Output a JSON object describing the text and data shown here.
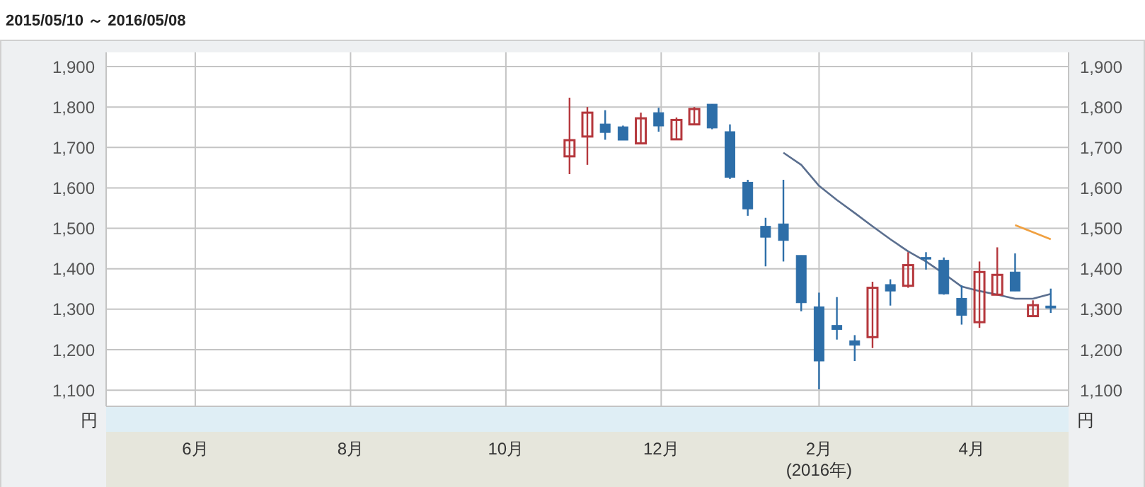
{
  "chart_data": {
    "type": "candlestick",
    "title": "2015/05/10 ～ 2016/05/08",
    "ylabel": "円",
    "y2label": "円",
    "x": [
      "2015-10-26",
      "2015-11-02",
      "2015-11-09",
      "2015-11-16",
      "2015-11-23",
      "2015-11-30",
      "2015-12-07",
      "2015-12-14",
      "2015-12-21",
      "2015-12-28",
      "2016-01-04",
      "2016-01-11",
      "2016-01-18",
      "2016-01-25",
      "2016-02-01",
      "2016-02-08",
      "2016-02-15",
      "2016-02-22",
      "2016-02-29",
      "2016-03-07",
      "2016-03-14",
      "2016-03-21",
      "2016-03-28",
      "2016-04-04",
      "2016-04-11",
      "2016-04-18",
      "2016-04-25",
      "2016-05-02"
    ],
    "ohlc": [
      [
        1678,
        1823,
        1634,
        1718
      ],
      [
        1727,
        1800,
        1657,
        1786
      ],
      [
        1758,
        1792,
        1719,
        1737
      ],
      [
        1751,
        1754,
        1718,
        1718
      ],
      [
        1710,
        1786,
        1710,
        1772
      ],
      [
        1786,
        1798,
        1739,
        1753
      ],
      [
        1720,
        1774,
        1718,
        1768
      ],
      [
        1757,
        1800,
        1757,
        1795
      ],
      [
        1807,
        1807,
        1745,
        1748
      ],
      [
        1739,
        1757,
        1622,
        1626
      ],
      [
        1614,
        1620,
        1531,
        1548
      ],
      [
        1505,
        1526,
        1406,
        1478
      ],
      [
        1511,
        1620,
        1418,
        1470
      ],
      [
        1433,
        1433,
        1295,
        1316
      ],
      [
        1306,
        1341,
        1102,
        1172
      ],
      [
        1260,
        1330,
        1225,
        1250
      ],
      [
        1222,
        1236,
        1172,
        1211
      ],
      [
        1231,
        1368,
        1204,
        1353
      ],
      [
        1361,
        1374,
        1309,
        1345
      ],
      [
        1358,
        1441,
        1353,
        1409
      ],
      [
        1428,
        1441,
        1398,
        1424
      ],
      [
        1421,
        1428,
        1336,
        1338
      ],
      [
        1327,
        1359,
        1262,
        1285
      ],
      [
        1268,
        1418,
        1254,
        1392
      ],
      [
        1336,
        1453,
        1336,
        1385
      ],
      [
        1392,
        1438,
        1345,
        1345
      ],
      [
        1283,
        1322,
        1281,
        1310
      ],
      [
        1308,
        1351,
        1291,
        1303
      ]
    ],
    "colors": [
      "#b5373c",
      "#b5373c",
      "#2d6ea8",
      "#2d6ea8",
      "#b5373c",
      "#2d6ea8",
      "#b5373c",
      "#b5373c",
      "#2d6ea8",
      "#2d6ea8",
      "#2d6ea8",
      "#2d6ea8",
      "#2d6ea8",
      "#2d6ea8",
      "#2d6ea8",
      "#2d6ea8",
      "#2d6ea8",
      "#b5373c",
      "#2d6ea8",
      "#b5373c",
      "#2d6ea8",
      "#2d6ea8",
      "#2d6ea8",
      "#b5373c",
      "#b5373c",
      "#2d6ea8",
      "#b5373c",
      "#2d6ea8"
    ],
    "series": [
      {
        "type": "line",
        "color": "#5b6f8f",
        "x": [
          "2016-01-18",
          "2016-01-25",
          "2016-02-01",
          "2016-02-08",
          "2016-02-15",
          "2016-02-22",
          "2016-02-29",
          "2016-03-07",
          "2016-03-14",
          "2016-03-21",
          "2016-03-28",
          "2016-04-04",
          "2016-04-11",
          "2016-04-18",
          "2016-04-25",
          "2016-05-02"
        ],
        "values": [
          1687,
          1657,
          1605,
          1570,
          1538,
          1505,
          1473,
          1443,
          1418,
          1388,
          1356,
          1345,
          1336,
          1326,
          1326,
          1338
        ]
      },
      {
        "type": "line",
        "color": "#f0a040",
        "x": [
          "2016-04-18",
          "2016-05-02"
        ],
        "values": [
          1508,
          1473
        ]
      }
    ],
    "xlim": [
      "2015-04-27",
      "2016-05-09"
    ],
    "xticks": [
      {
        "value": "2015-06-01",
        "label": "6月"
      },
      {
        "value": "2015-08-01",
        "label": "8月"
      },
      {
        "value": "2015-10-01",
        "label": "10月"
      },
      {
        "value": "2015-12-01",
        "label": "12月"
      },
      {
        "value": "2016-02-01",
        "label": "2月\n(2016年)"
      },
      {
        "value": "2016-04-01",
        "label": "4月"
      }
    ],
    "ylim": [
      1060,
      1935
    ],
    "yticks": [
      {
        "value": 1100,
        "label": "1,100"
      },
      {
        "value": 1200,
        "label": "1,200"
      },
      {
        "value": 1300,
        "label": "1,300"
      },
      {
        "value": 1400,
        "label": "1,400"
      },
      {
        "value": 1500,
        "label": "1,500"
      },
      {
        "value": 1600,
        "label": "1,600"
      },
      {
        "value": 1700,
        "label": "1,700"
      },
      {
        "value": 1800,
        "label": "1,800"
      },
      {
        "value": 1900,
        "label": "1,900"
      }
    ],
    "y2lim": [
      1060,
      1935
    ],
    "y2ticks": [
      {
        "value": 1100,
        "label": "1,100"
      },
      {
        "value": 1200,
        "label": "1,200"
      },
      {
        "value": 1300,
        "label": "1,300"
      },
      {
        "value": 1400,
        "label": "1,400"
      },
      {
        "value": 1500,
        "label": "1,500"
      },
      {
        "value": 1600,
        "label": "1,600"
      },
      {
        "value": 1700,
        "label": "1,700"
      },
      {
        "value": 1800,
        "label": "1,800"
      },
      {
        "value": 1900,
        "label": "1,900"
      }
    ],
    "grid": true,
    "marker": "none",
    "line_style": "solid"
  }
}
